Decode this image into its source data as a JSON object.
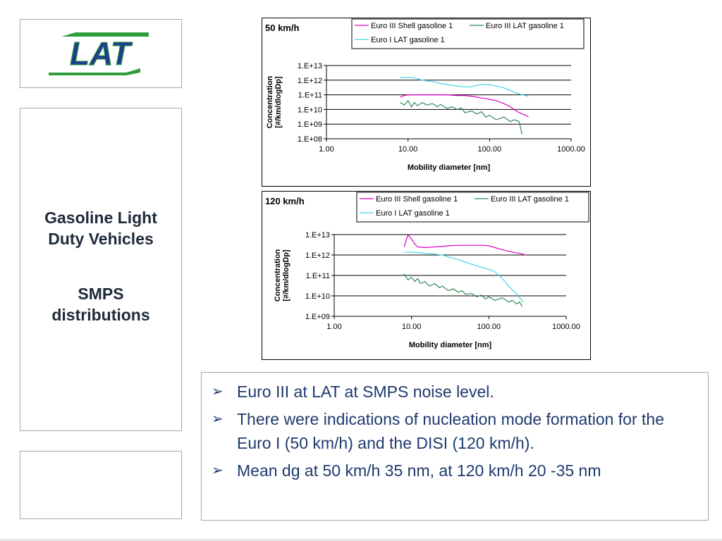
{
  "sidebar": {
    "title_line1": "Gasoline Light",
    "title_line2": "Duty Vehicles",
    "subtitle_line1": "SMPS",
    "subtitle_line2": "distributions"
  },
  "logo": {
    "text": "LAT"
  },
  "colors": {
    "shell": "#e000c8",
    "lat_euro3": "#2e8b57",
    "lat_euro1": "#3fd8e8",
    "text": "#1e3a6e"
  },
  "bullets": [
    "Euro III at LAT at SMPS noise level.",
    "There were indications of nucleation mode formation for the Euro I (50 km/h) and the DISI (120 km/h).",
    "Mean dg at 50 km/h 35 nm, at 120 km/h 20 -35 nm"
  ],
  "chart_data": [
    {
      "type": "line",
      "title": "50 km/h",
      "xlabel": "Mobility diameter [nm]",
      "ylabel_line1": "Concentration",
      "ylabel_line2": "[#/km/dlogDp]",
      "xscale": "log",
      "yscale": "log",
      "xlim": [
        1,
        1000
      ],
      "ylim": [
        100000000,
        10000000000000
      ],
      "xticks": [
        "1.00",
        "10.00",
        "100.00",
        "1000.00"
      ],
      "yticks": [
        "1.E+08",
        "1.E+09",
        "1.E+10",
        "1.E+11",
        "1.E+12",
        "1.E+13"
      ],
      "legend_position": "top-right",
      "series": [
        {
          "name": "Euro III Shell gasoline 1",
          "color": "#e000c8",
          "x": [
            8,
            9,
            10,
            12,
            15,
            20,
            25,
            30,
            40,
            50,
            60,
            80,
            100,
            120,
            150,
            180,
            200,
            220,
            250,
            280,
            300
          ],
          "y": [
            70000000000.0,
            90000000000.0,
            100000000000.0,
            100000000000.0,
            100000000000.0,
            100000000000.0,
            100000000000.0,
            100000000000.0,
            90000000000.0,
            90000000000.0,
            80000000000.0,
            60000000000.0,
            50000000000.0,
            40000000000.0,
            25000000000.0,
            15000000000.0,
            10000000000.0,
            7000000000.0,
            5000000000.0,
            4000000000.0,
            3000000000.0
          ]
        },
        {
          "name": "Euro III LAT gasoline 1",
          "color": "#2e8b57",
          "x": [
            8,
            9,
            10,
            11,
            12,
            13,
            15,
            17,
            20,
            23,
            25,
            30,
            35,
            40,
            45,
            50,
            60,
            70,
            80,
            90,
            100,
            120,
            150,
            180,
            200,
            230,
            250
          ],
          "y": [
            30000000000.0,
            20000000000.0,
            40000000000.0,
            15000000000.0,
            30000000000.0,
            18000000000.0,
            30000000000.0,
            20000000000.0,
            25000000000.0,
            15000000000.0,
            22000000000.0,
            12000000000.0,
            15000000000.0,
            10000000000.0,
            13000000000.0,
            6000000000.0,
            8000000000.0,
            5000000000.0,
            7000000000.0,
            3000000000.0,
            4000000000.0,
            2000000000.0,
            3000000000.0,
            1500000000.0,
            2000000000.0,
            1500000000.0,
            200000000.0
          ]
        },
        {
          "name": "Euro I LAT gasoline 1",
          "color": "#3fd8e8",
          "x": [
            8,
            10,
            12,
            15,
            20,
            25,
            30,
            40,
            50,
            60,
            70,
            80,
            100,
            120,
            150,
            180,
            200,
            250,
            300
          ],
          "y": [
            1500000000000.0,
            1600000000000.0,
            1400000000000.0,
            1000000000000.0,
            800000000000.0,
            600000000000.0,
            500000000000.0,
            400000000000.0,
            350000000000.0,
            350000000000.0,
            450000000000.0,
            500000000000.0,
            500000000000.0,
            400000000000.0,
            300000000000.0,
            200000000000.0,
            150000000000.0,
            100000000000.0,
            80000000000.0
          ]
        }
      ]
    },
    {
      "type": "line",
      "title": "120 km/h",
      "xlabel": "Mobility diameter [nm]",
      "ylabel_line1": "Concentration",
      "ylabel_line2": "[#/km/dlogDp]",
      "xscale": "log",
      "yscale": "log",
      "xlim": [
        1,
        1000
      ],
      "ylim": [
        1000000000,
        10000000000000
      ],
      "xticks": [
        "1.00",
        "10.00",
        "100.00",
        "1000.00"
      ],
      "yticks": [
        "1.E+09",
        "1.E+10",
        "1.E+11",
        "1.E+12",
        "1.E+13"
      ],
      "legend_position": "top-right",
      "series": [
        {
          "name": "Euro III Shell gasoline 1",
          "color": "#e000c8",
          "x": [
            8,
            8.5,
            9,
            10,
            11,
            12,
            15,
            20,
            30,
            40,
            50,
            60,
            80,
            100,
            120,
            150,
            200,
            250,
            300
          ],
          "y": [
            2500000000000.0,
            5000000000000.0,
            10000000000000.0,
            6000000000000.0,
            3500000000000.0,
            2500000000000.0,
            2300000000000.0,
            2500000000000.0,
            2800000000000.0,
            3000000000000.0,
            3000000000000.0,
            3000000000000.0,
            3000000000000.0,
            2800000000000.0,
            2300000000000.0,
            1800000000000.0,
            1400000000000.0,
            1200000000000.0,
            1000000000000.0
          ]
        },
        {
          "name": "Euro III LAT gasoline 1",
          "color": "#2e8b57",
          "x": [
            8,
            9,
            10,
            11,
            12,
            13,
            15,
            17,
            20,
            23,
            25,
            30,
            35,
            40,
            45,
            50,
            60,
            70,
            80,
            90,
            100,
            120,
            150,
            180,
            200,
            230,
            250,
            270
          ],
          "y": [
            120000000000.0,
            60000000000.0,
            80000000000.0,
            50000000000.0,
            70000000000.0,
            40000000000.0,
            50000000000.0,
            30000000000.0,
            40000000000.0,
            25000000000.0,
            30000000000.0,
            18000000000.0,
            22000000000.0,
            15000000000.0,
            18000000000.0,
            12000000000.0,
            13000000000.0,
            9000000000.0,
            11000000000.0,
            7000000000.0,
            9000000000.0,
            6000000000.0,
            8000000000.0,
            5000000000.0,
            6000000000.0,
            4000000000.0,
            5000000000.0,
            3000000000.0
          ]
        },
        {
          "name": "Euro I LAT gasoline 1",
          "color": "#3fd8e8",
          "x": [
            8,
            9,
            10,
            12,
            15,
            20,
            25,
            30,
            40,
            50,
            60,
            80,
            100,
            120,
            150,
            180,
            200,
            230,
            250,
            280
          ],
          "y": [
            1300000000000.0,
            1400000000000.0,
            1400000000000.0,
            1300000000000.0,
            1200000000000.0,
            1100000000000.0,
            1000000000000.0,
            800000000000.0,
            600000000000.0,
            450000000000.0,
            350000000000.0,
            250000000000.0,
            200000000000.0,
            150000000000.0,
            70000000000.0,
            30000000000.0,
            20000000000.0,
            12000000000.0,
            8000000000.0,
            5000000000.0
          ]
        }
      ]
    }
  ]
}
